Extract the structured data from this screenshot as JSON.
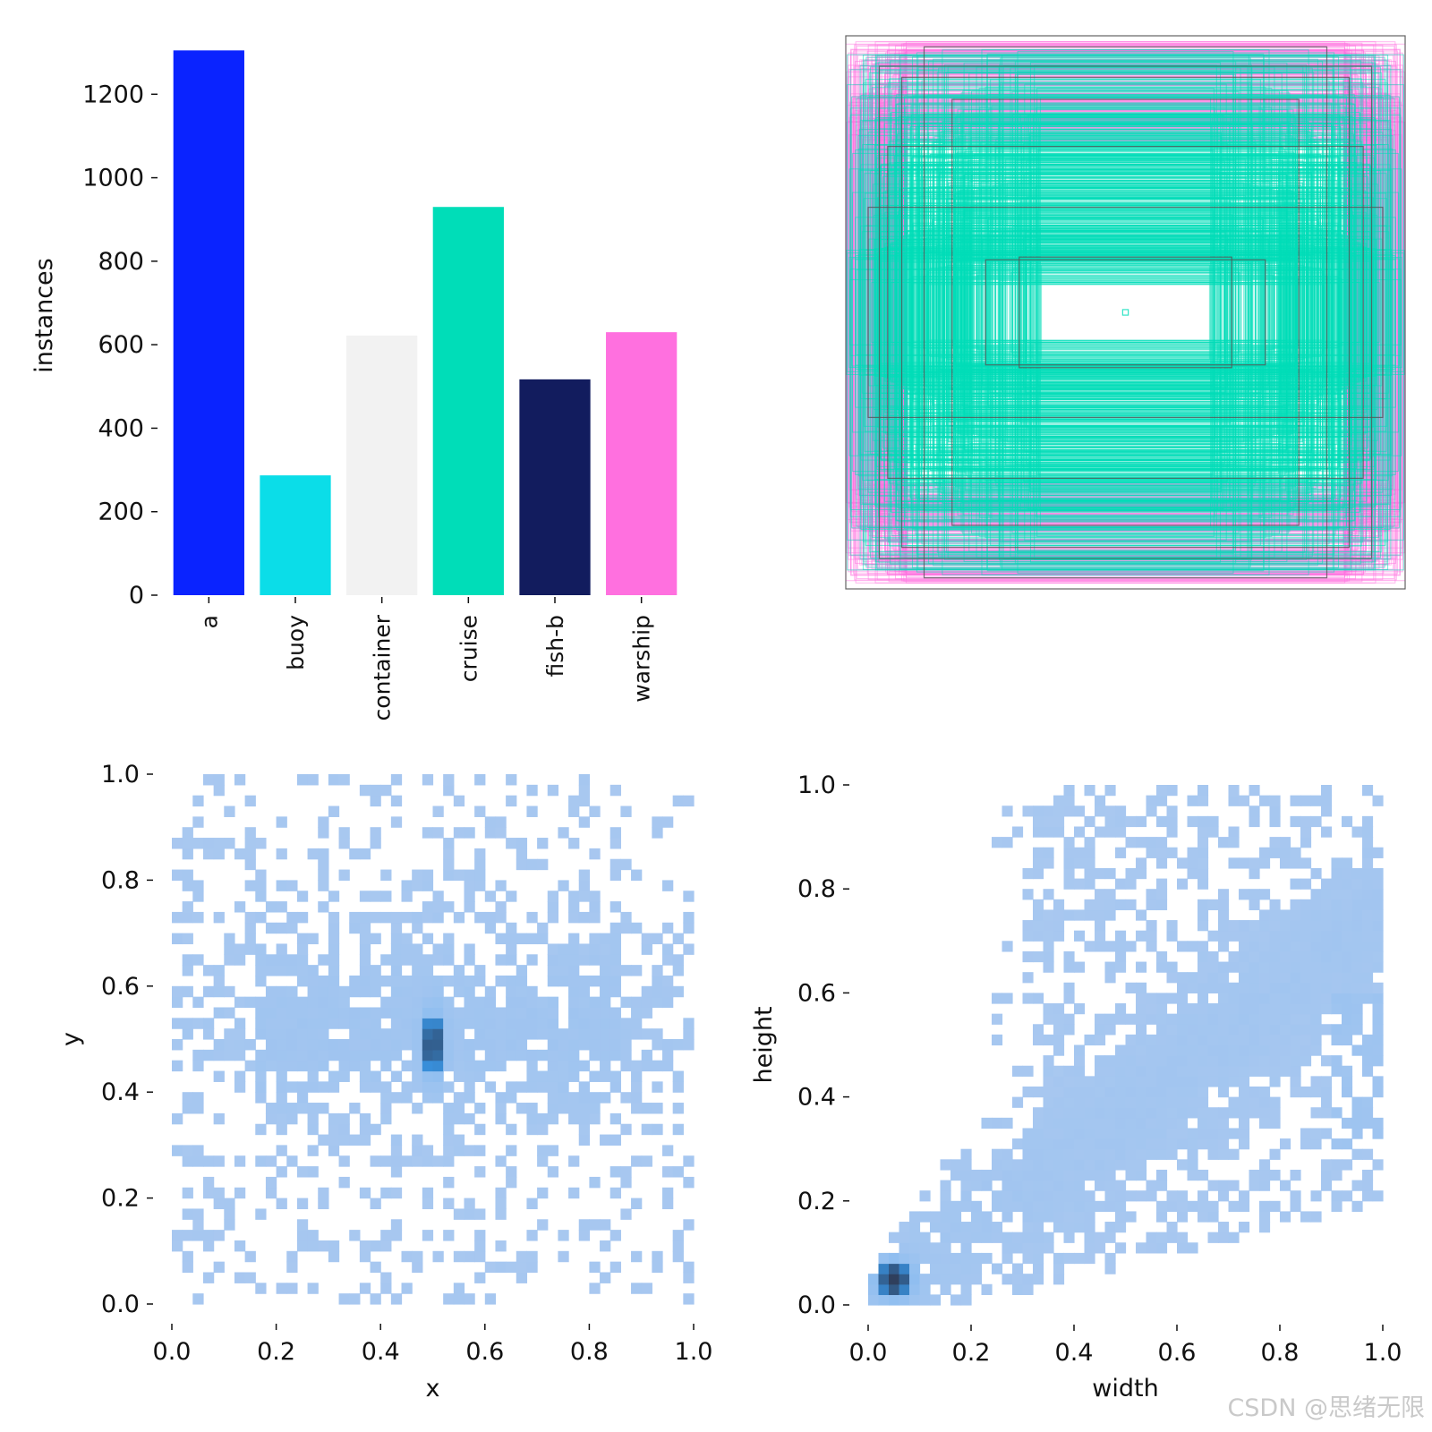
{
  "watermark": "CSDN @思绪无限",
  "colors": {
    "text": "#111111",
    "heatmap_light": "#a9c8f0",
    "heatmap_mid": "#3a9df0",
    "heatmap_dark": "#2f3f5c",
    "box_outline": "#555555"
  },
  "chart_data": [
    {
      "type": "bar",
      "name": "class-instances",
      "categories": [
        "a",
        "buoy",
        "container",
        "cruise",
        "fish-b",
        "warship"
      ],
      "values": [
        1305,
        287,
        622,
        930,
        517,
        630
      ],
      "colors": [
        "#0a23ff",
        "#0bdde8",
        "#f2f2f2",
        "#00ddb8",
        "#121c5e",
        "#ff70df"
      ],
      "title": "",
      "xlabel": "",
      "ylabel": "instances",
      "ylim": [
        0,
        1340
      ],
      "yticks": [
        0,
        200,
        400,
        600,
        800,
        1000,
        1200
      ],
      "ytick_labels": [
        "0",
        "200",
        "400",
        "600",
        "800",
        "1000",
        "1200"
      ],
      "grid": false
    },
    {
      "type": "boxes",
      "name": "bounding-box-overlay",
      "title": "",
      "description_colors": [
        "#00ddb8",
        "#ff70df",
        "#555555"
      ],
      "boxes": [
        {
          "w": 1.0,
          "h": 1.0,
          "c": 2
        },
        {
          "w": 0.72,
          "h": 0.96,
          "c": 2
        },
        {
          "w": 0.88,
          "h": 0.89,
          "c": 2
        },
        {
          "w": 0.8,
          "h": 0.85,
          "c": 2
        },
        {
          "w": 0.62,
          "h": 0.77,
          "c": 2
        },
        {
          "w": 0.5,
          "h": 0.19,
          "c": 2
        },
        {
          "w": 0.38,
          "h": 0.2,
          "c": 2
        },
        {
          "w": 0.92,
          "h": 0.38,
          "c": 2
        },
        {
          "w": 0.85,
          "h": 0.6,
          "c": 2
        },
        {
          "w": 0.01,
          "h": 0.01,
          "c": 0
        }
      ]
    },
    {
      "type": "heatmap",
      "name": "xy-histogram",
      "xlabel": "x",
      "ylabel": "y",
      "xlim": [
        0.0,
        1.0
      ],
      "ylim": [
        0.0,
        1.0
      ],
      "xticks": [
        0.0,
        0.2,
        0.4,
        0.6,
        0.8,
        1.0
      ],
      "xtick_labels": [
        "0.0",
        "0.2",
        "0.4",
        "0.6",
        "0.8",
        "1.0"
      ],
      "yticks": [
        0.0,
        0.2,
        0.4,
        0.6,
        0.8,
        1.0
      ],
      "ytick_labels": [
        "0.0",
        "0.2",
        "0.4",
        "0.6",
        "0.8",
        "1.0"
      ],
      "bins": 50,
      "hotspot": {
        "x": 0.5,
        "y": 0.48,
        "note": "dense vertical cluster at image center"
      }
    },
    {
      "type": "heatmap",
      "name": "wh-histogram",
      "xlabel": "width",
      "ylabel": "height",
      "xlim": [
        0.0,
        1.0
      ],
      "ylim": [
        0.0,
        1.0
      ],
      "xticks": [
        0.0,
        0.2,
        0.4,
        0.6,
        0.8,
        1.0
      ],
      "xtick_labels": [
        "0.0",
        "0.2",
        "0.4",
        "0.6",
        "0.8",
        "1.0"
      ],
      "yticks": [
        0.0,
        0.2,
        0.4,
        0.6,
        0.8,
        1.0
      ],
      "ytick_labels": [
        "0.0",
        "0.2",
        "0.4",
        "0.6",
        "0.8",
        "1.0"
      ],
      "bins": 50,
      "hotspot": {
        "x": 0.05,
        "y": 0.05,
        "note": "dense cluster of small boxes near origin"
      }
    }
  ]
}
